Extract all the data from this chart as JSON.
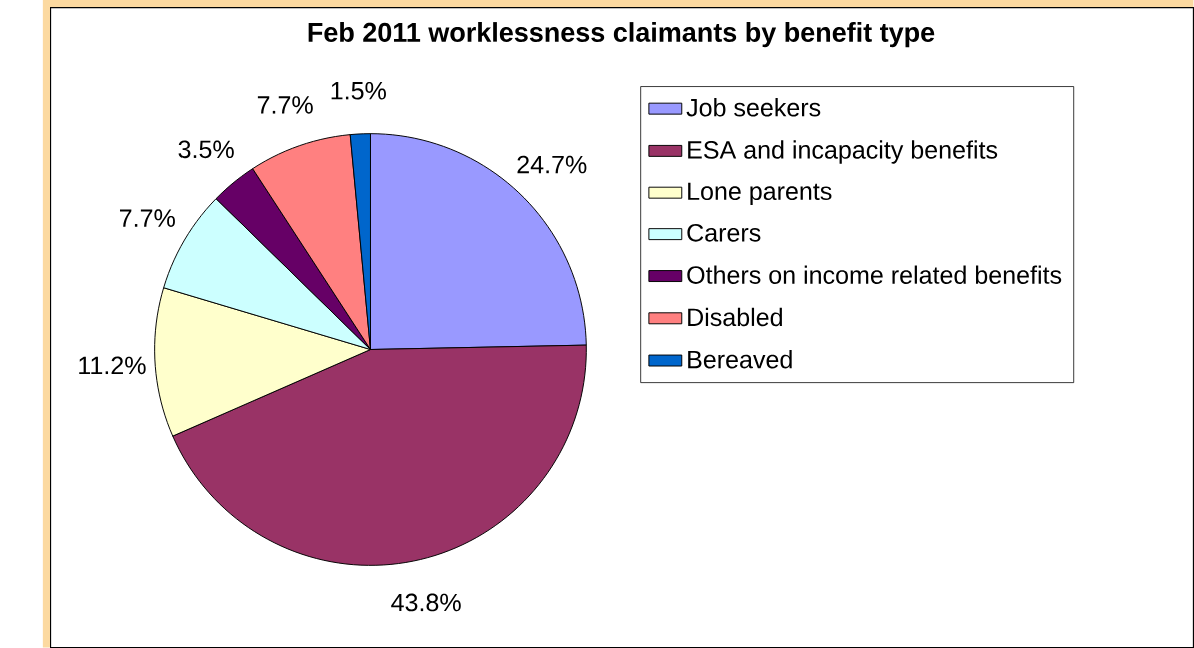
{
  "chart_data": {
    "type": "pie",
    "title": "Feb 2011 worklessness claimants by benefit type",
    "categories": [
      "Job seekers",
      "ESA and incapacity benefits",
      "Lone parents",
      "Carers",
      "Others on income related benefits",
      "Disabled",
      "Bereaved"
    ],
    "values": [
      24.7,
      43.8,
      11.2,
      7.7,
      3.5,
      7.7,
      1.5
    ],
    "colors": [
      "#9999ff",
      "#993366",
      "#ffffcc",
      "#ccffff",
      "#660066",
      "#ff8080",
      "#0066cc"
    ],
    "value_labels": [
      "24.7%",
      "43.8%",
      "11.2%",
      "7.7%",
      "3.5%",
      "7.7%",
      "1.5%"
    ],
    "legend": "right"
  }
}
